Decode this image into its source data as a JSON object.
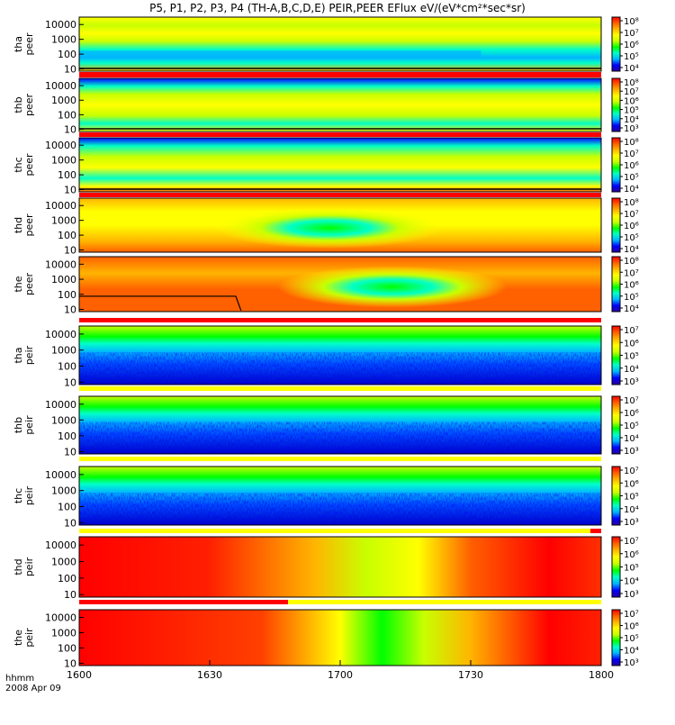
{
  "title": "P5, P1, P2, P3, P4 (TH-A,B,C,D,E) PEIR,PEER EFlux eV/(eV*cm²*sec*sr)",
  "axis": {
    "time_label_1": "hhmm",
    "time_label_2": "2008 Apr 09",
    "x_ticks": [
      "1600",
      "1630",
      "1700",
      "1730",
      "1800"
    ]
  },
  "colors": {
    "scale": [
      "#2a00a0",
      "#0000ff",
      "#00b4ff",
      "#00ffc8",
      "#00ff00",
      "#c8ff00",
      "#ffff00",
      "#ffb400",
      "#ff6000",
      "#ff0000"
    ],
    "status_red": "#ff0000",
    "status_yellow": "#ffff00"
  },
  "chart_data": [
    {
      "type": "heatmap",
      "probe": "tha",
      "species": "peer",
      "ylabel": "tha peer",
      "yticks": [
        "10000",
        "1000",
        "100",
        "10"
      ],
      "cbar_ticks": [
        "10⁸",
        "10⁷",
        "10⁶",
        "10⁵",
        "10⁴"
      ],
      "style": "tha_peer"
    },
    {
      "type": "heatmap",
      "probe": "thb",
      "species": "peer",
      "ylabel": "thb peer",
      "yticks": [
        "10000",
        "1000",
        "100",
        "10"
      ],
      "cbar_ticks": [
        "10⁸",
        "10⁷",
        "10⁶",
        "10⁵",
        "10⁴",
        "10³"
      ],
      "style": "thb_peer"
    },
    {
      "type": "heatmap",
      "probe": "thc",
      "species": "peer",
      "ylabel": "thc peer",
      "yticks": [
        "10000",
        "1000",
        "100",
        "10"
      ],
      "cbar_ticks": [
        "10⁸",
        "10⁷",
        "10⁶",
        "10⁵",
        "10⁴"
      ],
      "style": "thc_peer"
    },
    {
      "type": "heatmap",
      "probe": "thd",
      "species": "peer",
      "ylabel": "thd peer",
      "yticks": [
        "10000",
        "1000",
        "100",
        "10"
      ],
      "cbar_ticks": [
        "10⁸",
        "10⁷",
        "10⁶",
        "10⁵",
        "10⁴"
      ],
      "style": "thd_peer"
    },
    {
      "type": "heatmap",
      "probe": "the",
      "species": "peer",
      "ylabel": "the peer",
      "yticks": [
        "10000",
        "1000",
        "100",
        "10"
      ],
      "cbar_ticks": [
        "10⁸",
        "10⁷",
        "10⁶",
        "10⁵",
        "10⁴"
      ],
      "style": "the_peer"
    },
    {
      "type": "heatmap",
      "probe": "tha",
      "species": "peir",
      "ylabel": "tha peir",
      "yticks": [
        "10000",
        "1000",
        "100",
        "10"
      ],
      "cbar_ticks": [
        "10⁷",
        "10⁶",
        "10⁵",
        "10⁴",
        "10³"
      ],
      "style": "tha_peir"
    },
    {
      "type": "heatmap",
      "probe": "thb",
      "species": "peir",
      "ylabel": "thb peir",
      "yticks": [
        "10000",
        "1000",
        "100",
        "10"
      ],
      "cbar_ticks": [
        "10⁷",
        "10⁶",
        "10⁵",
        "10⁴",
        "10³"
      ],
      "style": "thb_peir"
    },
    {
      "type": "heatmap",
      "probe": "thc",
      "species": "peir",
      "ylabel": "thc peir",
      "yticks": [
        "10000",
        "1000",
        "100",
        "10"
      ],
      "cbar_ticks": [
        "10⁷",
        "10⁶",
        "10⁵",
        "10⁴",
        "10³"
      ],
      "style": "thc_peir"
    },
    {
      "type": "heatmap",
      "probe": "thd",
      "species": "peir",
      "ylabel": "thd peir",
      "yticks": [
        "10000",
        "1000",
        "100",
        "10"
      ],
      "cbar_ticks": [
        "10⁷",
        "10⁶",
        "10⁵",
        "10⁴",
        "10³"
      ],
      "style": "thd_peir"
    },
    {
      "type": "heatmap",
      "probe": "the",
      "species": "peir",
      "ylabel": "the peir",
      "yticks": [
        "10000",
        "1000",
        "100",
        "10"
      ],
      "cbar_ticks": [
        "10⁷",
        "10⁶",
        "10⁵",
        "10⁴",
        "10³"
      ],
      "style": "the_peir"
    }
  ]
}
